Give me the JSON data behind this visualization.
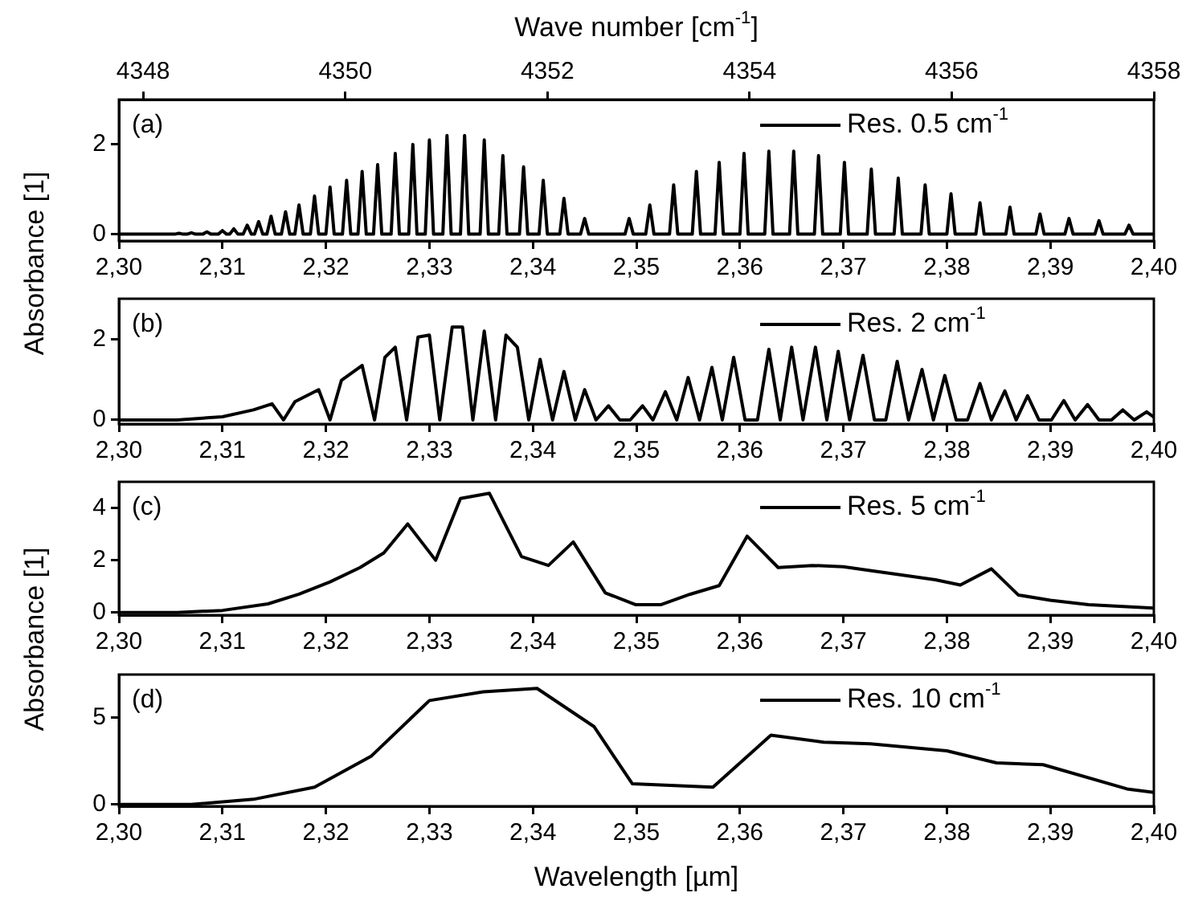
{
  "chart_data": [
    {
      "type": "line",
      "x2label": "Wave number [cm$^{-1}$]",
      "x2lim": [
        4347.76,
        4358
      ],
      "x2ticks": [
        4348,
        4350,
        4352,
        4354,
        4356,
        4358
      ],
      "xlim": [
        2.3,
        2.4
      ],
      "xticks": [
        {
          "value": 2.3,
          "label": "2,30"
        },
        {
          "value": 2.31,
          "label": "2,31"
        },
        {
          "value": 2.32,
          "label": "2,32"
        },
        {
          "value": 2.33,
          "label": "2,33"
        },
        {
          "value": 2.34,
          "label": "2,34"
        },
        {
          "value": 2.35,
          "label": "2,35"
        },
        {
          "value": 2.36,
          "label": "2,36"
        },
        {
          "value": 2.37,
          "label": "2,37"
        },
        {
          "value": 2.38,
          "label": "2,38"
        },
        {
          "value": 2.39,
          "label": "2,39"
        },
        {
          "value": 2.4,
          "label": "2,40"
        }
      ],
      "ylim": [
        -0.15,
        3
      ],
      "yticks": [
        0,
        2
      ],
      "legend": "top right",
      "annotations": [
        "(a)"
      ],
      "series": [
        {
          "name": "Res. 0.5 cm$^{-1}$",
          "color": "#000000",
          "x": [
            2.3,
            2.3054,
            2.3058,
            2.3062,
            2.3066,
            2.307,
            2.3074,
            2.3081,
            2.3085,
            2.3089,
            2.3096,
            2.31,
            2.3104,
            2.3107,
            2.3111,
            2.3115,
            2.312,
            2.3124,
            2.3128,
            2.3131,
            2.3135,
            2.3139,
            2.3143,
            2.3147,
            2.3151,
            2.3157,
            2.3161,
            2.3165,
            2.317,
            2.3174,
            2.3178,
            2.3185,
            2.3189,
            2.3193,
            2.32,
            2.3204,
            2.3208,
            2.3216,
            2.322,
            2.3224,
            2.3231,
            2.3235,
            2.3239,
            2.3246,
            2.325,
            2.3254,
            2.3263,
            2.3267,
            2.3271,
            2.328,
            2.3284,
            2.3288,
            2.3296,
            2.33,
            2.3304,
            2.3313,
            2.3317,
            2.3321,
            2.333,
            2.3334,
            2.3338,
            2.3349,
            2.3353,
            2.3357,
            2.3367,
            2.3371,
            2.3375,
            2.3387,
            2.3391,
            2.3395,
            2.3406,
            2.341,
            2.3414,
            2.3426,
            2.343,
            2.3434,
            2.3446,
            2.345,
            2.3454,
            2.3489,
            2.3493,
            2.3497,
            2.3509,
            2.3513,
            2.3517,
            2.3532,
            2.3536,
            2.354,
            2.3554,
            2.3558,
            2.3562,
            2.3576,
            2.358,
            2.3584,
            2.36,
            2.3604,
            2.3608,
            2.3624,
            2.3628,
            2.3632,
            2.3648,
            2.3652,
            2.3656,
            2.3672,
            2.3676,
            2.368,
            2.3697,
            2.3701,
            2.3705,
            2.3723,
            2.3727,
            2.3731,
            2.3749,
            2.3753,
            2.3757,
            2.3775,
            2.3779,
            2.3783,
            2.38,
            2.3804,
            2.3808,
            2.3828,
            2.3832,
            2.3836,
            2.3857,
            2.3861,
            2.3865,
            2.3886,
            2.389,
            2.3894,
            2.3914,
            2.3918,
            2.3922,
            2.3943,
            2.3947,
            2.3951,
            2.3972,
            2.3976,
            2.398,
            2.4
          ],
          "values": [
            0,
            0,
            0.02,
            0,
            0,
            0.03,
            0,
            0,
            0.05,
            0,
            0,
            0.08,
            0,
            0,
            0.12,
            0,
            0,
            0.2,
            0,
            0,
            0.28,
            0,
            0,
            0.4,
            0,
            0,
            0.5,
            0,
            0,
            0.65,
            0,
            0,
            0.85,
            0,
            0,
            1.05,
            0,
            0,
            1.2,
            0,
            0,
            1.4,
            0,
            0,
            1.55,
            0,
            0,
            1.8,
            0,
            0,
            2.0,
            0,
            0,
            2.1,
            0,
            0,
            2.2,
            0,
            0,
            2.2,
            0,
            0,
            2.1,
            0,
            0,
            1.75,
            0,
            0,
            1.5,
            0,
            0,
            1.2,
            0,
            0,
            0.8,
            0,
            0,
            0.35,
            0,
            0,
            0.35,
            0,
            0,
            0.65,
            0,
            0,
            1.1,
            0,
            0,
            1.4,
            0,
            0,
            1.6,
            0,
            0,
            1.8,
            0,
            0,
            1.85,
            0,
            0,
            1.85,
            0,
            0,
            1.75,
            0,
            0,
            1.6,
            0,
            0,
            1.45,
            0,
            0,
            1.25,
            0,
            0,
            1.1,
            0,
            0,
            0.9,
            0,
            0,
            0.7,
            0,
            0,
            0.6,
            0,
            0,
            0.45,
            0,
            0,
            0.35,
            0,
            0,
            0.3,
            0,
            0,
            0.2,
            0,
            0
          ]
        }
      ]
    },
    {
      "type": "line",
      "ylabel": "Absorbance [1]",
      "xlim": [
        2.3,
        2.4
      ],
      "xticks": [
        {
          "value": 2.3,
          "label": "2,30"
        },
        {
          "value": 2.31,
          "label": "2,31"
        },
        {
          "value": 2.32,
          "label": "2,32"
        },
        {
          "value": 2.33,
          "label": "2,33"
        },
        {
          "value": 2.34,
          "label": "2,34"
        },
        {
          "value": 2.35,
          "label": "2,35"
        },
        {
          "value": 2.36,
          "label": "2,36"
        },
        {
          "value": 2.37,
          "label": "2,37"
        },
        {
          "value": 2.38,
          "label": "2,38"
        },
        {
          "value": 2.39,
          "label": "2,39"
        },
        {
          "value": 2.4,
          "label": "2,40"
        }
      ],
      "ylim": [
        -0.1,
        3
      ],
      "yticks": [
        0,
        2
      ],
      "legend": "top right",
      "annotations": [
        "(b)"
      ],
      "series": [
        {
          "name": "Res. 2 cm$^{-1}$",
          "color": "#000000",
          "x": [
            2.3,
            2.3056,
            2.31,
            2.313,
            2.3148,
            2.3159,
            2.317,
            2.3193,
            2.3204,
            2.3215,
            2.3235,
            2.3247,
            2.3257,
            2.3267,
            2.3278,
            2.3289,
            2.33,
            2.331,
            2.3322,
            2.3332,
            2.3342,
            2.3353,
            2.3364,
            2.3374,
            2.3385,
            2.3396,
            2.3407,
            2.3419,
            2.343,
            2.3441,
            2.345,
            2.3461,
            2.3473,
            2.3484,
            2.3494,
            2.3506,
            2.3516,
            2.3528,
            2.3539,
            2.355,
            2.3561,
            2.3573,
            2.3583,
            2.3594,
            2.3605,
            2.3617,
            2.3628,
            2.3639,
            2.365,
            2.3661,
            2.3673,
            2.3684,
            2.3695,
            2.3706,
            2.3719,
            2.373,
            2.3741,
            2.3752,
            2.3763,
            2.3776,
            2.3787,
            2.3798,
            2.3809,
            2.382,
            2.3832,
            2.3843,
            2.3856,
            2.3867,
            2.3878,
            2.3889,
            2.3901,
            2.3913,
            2.3924,
            2.3936,
            2.3947,
            2.3959,
            2.397,
            2.3981,
            2.3993,
            2.4
          ],
          "values": [
            0,
            0,
            0.08,
            0.25,
            0.4,
            0,
            0.45,
            0.75,
            0,
            0.98,
            1.35,
            0,
            1.55,
            1.8,
            0,
            2.05,
            2.1,
            0,
            2.3,
            2.3,
            0,
            2.2,
            0,
            2.1,
            1.8,
            0,
            1.5,
            0,
            1.2,
            0,
            0.75,
            0,
            0.35,
            0,
            0,
            0.35,
            0,
            0.7,
            0,
            1.05,
            0,
            1.3,
            0,
            1.55,
            0,
            0,
            1.75,
            0,
            1.8,
            0,
            1.8,
            0,
            1.7,
            0,
            1.6,
            0,
            0,
            1.45,
            0,
            1.25,
            0,
            1.1,
            0,
            0,
            0.9,
            0,
            0.72,
            0,
            0.6,
            0,
            0,
            0.48,
            0,
            0.38,
            0,
            0,
            0.25,
            0,
            0.2,
            0.07
          ]
        }
      ]
    },
    {
      "type": "line",
      "xlim": [
        2.3,
        2.4
      ],
      "xticks": [
        {
          "value": 2.3,
          "label": "2,30"
        },
        {
          "value": 2.31,
          "label": "2,31"
        },
        {
          "value": 2.32,
          "label": "2,32"
        },
        {
          "value": 2.33,
          "label": "2,33"
        },
        {
          "value": 2.34,
          "label": "2,34"
        },
        {
          "value": 2.35,
          "label": "2,35"
        },
        {
          "value": 2.36,
          "label": "2,36"
        },
        {
          "value": 2.37,
          "label": "2,37"
        },
        {
          "value": 2.38,
          "label": "2,38"
        },
        {
          "value": 2.39,
          "label": "2,39"
        },
        {
          "value": 2.4,
          "label": "2,40"
        }
      ],
      "ylim": [
        -0.1,
        5
      ],
      "yticks": [
        0,
        2,
        4
      ],
      "legend": "top right",
      "annotations": [
        "(c)"
      ],
      "series": [
        {
          "name": "Res. 5 cm$^{-1}$",
          "color": "#000000",
          "x": [
            2.3,
            2.3056,
            2.31,
            2.3144,
            2.3174,
            2.3204,
            2.3233,
            2.3256,
            2.3279,
            2.3306,
            2.333,
            2.3358,
            2.3389,
            2.3415,
            2.3439,
            2.347,
            2.3499,
            2.3524,
            2.3552,
            2.358,
            2.3607,
            2.3637,
            2.367,
            2.37,
            2.373,
            2.3759,
            2.3789,
            2.3813,
            2.3843,
            2.3869,
            2.39,
            2.3937,
            2.4
          ],
          "values": [
            0,
            0,
            0.08,
            0.33,
            0.7,
            1.17,
            1.72,
            2.28,
            3.39,
            2.0,
            4.36,
            4.56,
            2.14,
            1.8,
            2.7,
            0.75,
            0.3,
            0.3,
            0.7,
            1.03,
            2.92,
            1.72,
            1.8,
            1.75,
            1.58,
            1.42,
            1.25,
            1.05,
            1.67,
            0.67,
            0.47,
            0.3,
            0.17
          ]
        }
      ]
    },
    {
      "type": "line",
      "ylabel": "Absorbance [1]",
      "xlabel": "Wavelength [µm]",
      "xlim": [
        2.3,
        2.4
      ],
      "xticks": [
        {
          "value": 2.3,
          "label": "2,30"
        },
        {
          "value": 2.31,
          "label": "2,31"
        },
        {
          "value": 2.32,
          "label": "2,32"
        },
        {
          "value": 2.33,
          "label": "2,33"
        },
        {
          "value": 2.34,
          "label": "2,34"
        },
        {
          "value": 2.35,
          "label": "2,35"
        },
        {
          "value": 2.36,
          "label": "2,36"
        },
        {
          "value": 2.37,
          "label": "2,37"
        },
        {
          "value": 2.38,
          "label": "2,38"
        },
        {
          "value": 2.39,
          "label": "2,39"
        },
        {
          "value": 2.4,
          "label": "2,40"
        }
      ],
      "ylim": [
        -0.1,
        7.5
      ],
      "yticks": [
        0,
        5
      ],
      "legend": "top right",
      "annotations": [
        "(d)"
      ],
      "series": [
        {
          "name": "Res. 10 cm$^{-1}$",
          "color": "#000000",
          "x": [
            2.3,
            2.307,
            2.313,
            2.3189,
            2.3244,
            2.33,
            2.3352,
            2.3404,
            2.3459,
            2.3496,
            2.3574,
            2.363,
            2.3681,
            2.3726,
            2.38,
            2.3848,
            2.3893,
            2.3974,
            2.4
          ],
          "values": [
            0,
            0,
            0.3,
            1,
            2.8,
            6.0,
            6.5,
            6.7,
            4.5,
            1.2,
            1,
            4.0,
            3.6,
            3.5,
            3.1,
            2.4,
            2.3,
            0.9,
            0.7
          ]
        }
      ]
    }
  ]
}
